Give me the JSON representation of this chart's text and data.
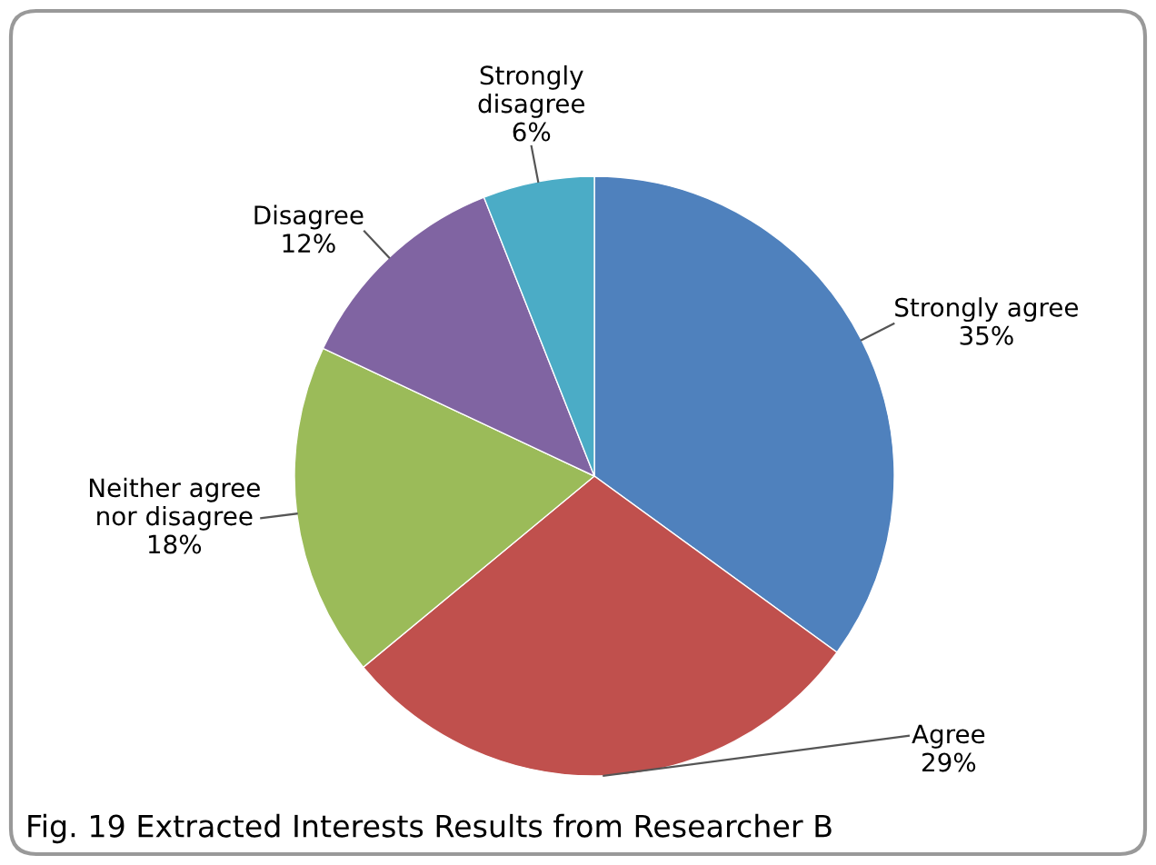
{
  "chart_data": {
    "type": "pie",
    "categories": [
      "Strongly agree",
      "Agree",
      "Neither agree\nnor disagree",
      "Disagree",
      "Strongly\ndisagree"
    ],
    "values": [
      35,
      29,
      18,
      12,
      6
    ],
    "value_labels": [
      "35%",
      "29%",
      "18%",
      "12%",
      "6%"
    ],
    "colors": [
      "#4f81bd",
      "#c0504d",
      "#9bbb59",
      "#8064a2",
      "#4bacc6"
    ],
    "legend": false,
    "annotations": [
      "Fig. 19 Extracted Interests Results from Researcher B"
    ]
  }
}
